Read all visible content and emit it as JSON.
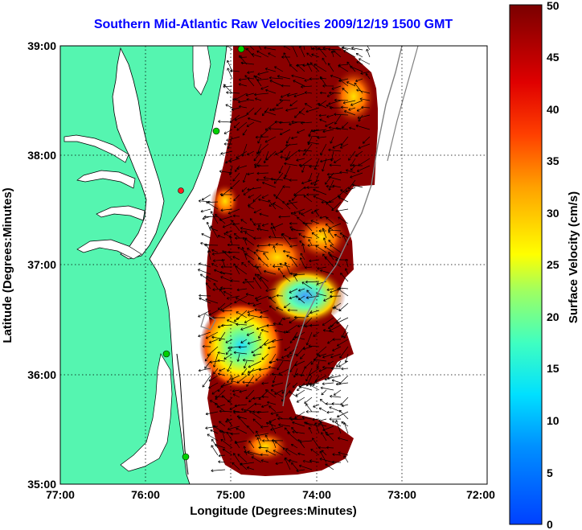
{
  "title": "Southern Mid-Atlantic Raw Velocities 2009/12/19 1500 GMT",
  "colorbar": {
    "label": "Surface Velocity (cm/s)",
    "ticks": [
      "0",
      "5",
      "10",
      "15",
      "20",
      "25",
      "30",
      "35",
      "40",
      "45",
      "50"
    ]
  },
  "map": {
    "xlabel": "Longitude (Degrees:Minutes)",
    "ylabel": "Latitude (Degrees:Minutes)",
    "x_ticks": [
      "77:00",
      "76:00",
      "75:00",
      "74:00",
      "73:00",
      "72:00"
    ],
    "y_ticks": [
      "39:00",
      "38:00",
      "37:00",
      "36:00",
      "35:00"
    ],
    "colors": {
      "land": "#55f5b0",
      "ocean": "#ffffff",
      "max_velocity": "#7a0000"
    }
  }
}
